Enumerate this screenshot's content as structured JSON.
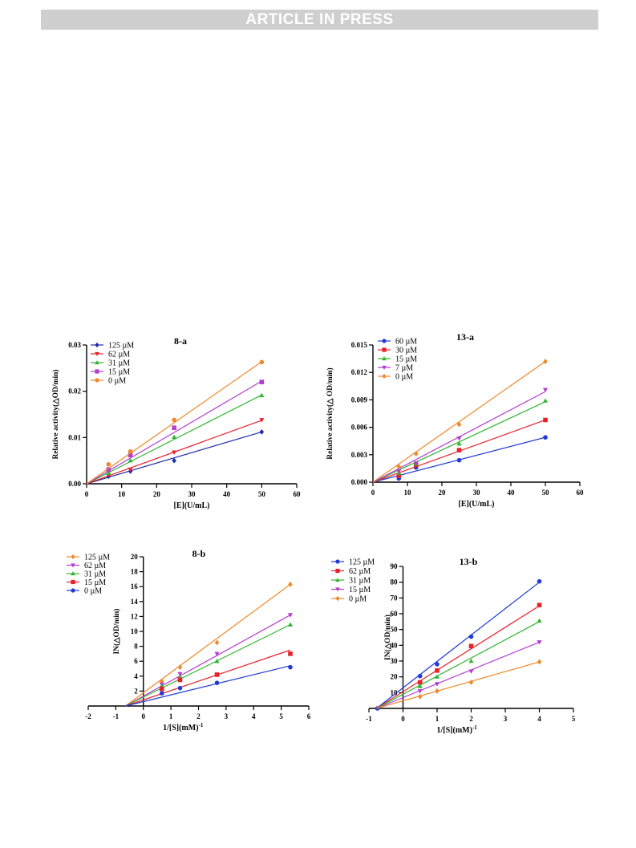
{
  "header": {
    "banner": "ARTICLE IN PRESS"
  },
  "chart_data": [
    {
      "id": "8-a",
      "type": "line",
      "title": "8-a",
      "xlabel": "[E](U/mL)",
      "ylabel": "Relative activity(△OD/min)",
      "xlim": [
        0,
        60
      ],
      "ylim": [
        0,
        0.03
      ],
      "xticks": [
        "0",
        "10",
        "20",
        "30",
        "40",
        "50",
        "60"
      ],
      "yticks": [
        "0.00",
        "0.01",
        "0.02",
        "0.03"
      ],
      "legend_position": "top-left",
      "series": [
        {
          "name": "125 µM",
          "color": "#1f2aa8",
          "marker": "diamond",
          "x": [
            6.25,
            12.5,
            25,
            50
          ],
          "y": [
            0.0016,
            0.0027,
            0.005,
            0.0112
          ],
          "fit": [
            [
              0,
              0
            ],
            [
              50,
              0.0112
            ]
          ]
        },
        {
          "name": "62 µM",
          "color": "#e8202a",
          "marker": "tri-down",
          "x": [
            6.25,
            12.5,
            25,
            50
          ],
          "y": [
            0.0019,
            0.0031,
            0.0068,
            0.0138
          ],
          "fit": [
            [
              0,
              0
            ],
            [
              50,
              0.0137
            ]
          ]
        },
        {
          "name": "31 µM",
          "color": "#2fb52f",
          "marker": "tri-up",
          "x": [
            6.25,
            12.5,
            25,
            50
          ],
          "y": [
            0.0023,
            0.005,
            0.0101,
            0.0191
          ],
          "fit": [
            [
              0,
              0
            ],
            [
              50,
              0.0192
            ]
          ]
        },
        {
          "name": "15 µM",
          "color": "#b43ccf",
          "marker": "square",
          "x": [
            6.25,
            12.5,
            25,
            50
          ],
          "y": [
            0.0031,
            0.0062,
            0.0121,
            0.022
          ],
          "fit": [
            [
              0,
              0
            ],
            [
              50,
              0.0222
            ]
          ]
        },
        {
          "name": "0 µM",
          "color": "#f0872a",
          "marker": "circle",
          "x": [
            6.25,
            12.5,
            25,
            50
          ],
          "y": [
            0.0042,
            0.007,
            0.0138,
            0.0263
          ],
          "fit": [
            [
              0,
              0
            ],
            [
              50,
              0.0264
            ]
          ]
        }
      ]
    },
    {
      "id": "13-a",
      "type": "line",
      "title": "13-a",
      "xlabel": "[E](U/mL)",
      "ylabel": "Relative activity(△ OD/min)",
      "xlim": [
        0,
        60
      ],
      "ylim": [
        0,
        0.015
      ],
      "xticks": [
        "0",
        "10",
        "20",
        "30",
        "40",
        "50",
        "60"
      ],
      "yticks": [
        "0.000",
        "0.003",
        "0.006",
        "0.009",
        "0.012",
        "0.015"
      ],
      "legend_position": "top-left",
      "series": [
        {
          "name": "60 µM",
          "color": "#1f3ad6",
          "marker": "circle",
          "x": [
            7.5,
            12.5,
            25,
            50
          ],
          "y": [
            0.0004,
            0.0016,
            0.0024,
            0.0049
          ],
          "fit": [
            [
              0,
              0
            ],
            [
              50,
              0.0049
            ]
          ]
        },
        {
          "name": "30 µM",
          "color": "#e8202a",
          "marker": "square",
          "x": [
            7.5,
            12.5,
            25,
            50
          ],
          "y": [
            0.0007,
            0.0019,
            0.0035,
            0.0068
          ],
          "fit": [
            [
              0,
              0
            ],
            [
              50,
              0.0068
            ]
          ]
        },
        {
          "name": "15 µM",
          "color": "#2fb52f",
          "marker": "tri-up",
          "x": [
            7.5,
            12.5,
            25,
            50
          ],
          "y": [
            0.001,
            0.002,
            0.0042,
            0.0089
          ],
          "fit": [
            [
              0,
              0
            ],
            [
              50,
              0.0088
            ]
          ]
        },
        {
          "name": "7 µM",
          "color": "#b43ccf",
          "marker": "tri-down",
          "x": [
            7.5,
            12.5,
            25,
            50
          ],
          "y": [
            0.0012,
            0.0021,
            0.0048,
            0.0101
          ],
          "fit": [
            [
              0,
              0
            ],
            [
              50,
              0.0099
            ]
          ]
        },
        {
          "name": "0 µM",
          "color": "#f0872a",
          "marker": "diamond",
          "x": [
            7.5,
            12.5,
            25,
            50
          ],
          "y": [
            0.0017,
            0.0031,
            0.0063,
            0.0132
          ],
          "fit": [
            [
              0,
              0
            ],
            [
              50,
              0.0132
            ]
          ]
        }
      ]
    },
    {
      "id": "8-b",
      "type": "line",
      "title": "8-b",
      "xlabel": "1/[S](mM)",
      "xlabel_sup": "-1",
      "ylabel": "IN(△OD/min)",
      "xlim": [
        -2,
        6
      ],
      "ylim": [
        0,
        20
      ],
      "x_axis_at": 0,
      "xticks": [
        "-2",
        "-1",
        "0",
        "1",
        "2",
        "3",
        "4",
        "5",
        "6"
      ],
      "yticks": [
        "2",
        "4",
        "6",
        "8",
        "10",
        "12",
        "14",
        "16",
        "18",
        "20"
      ],
      "legend_position": "top-left",
      "series": [
        {
          "name": "125 µM",
          "color": "#f0872a",
          "marker": "diamond",
          "x": [
            0.67,
            1.33,
            2.67,
            5.33
          ],
          "y": [
            3.3,
            5.2,
            8.5,
            16.3
          ],
          "fit": [
            [
              -0.65,
              0
            ],
            [
              5.33,
              16.3
            ]
          ]
        },
        {
          "name": "62 µM",
          "color": "#b43ccf",
          "marker": "tri-down",
          "x": [
            0.67,
            1.33,
            2.67,
            5.33
          ],
          "y": [
            2.9,
            4.3,
            7.0,
            12.2
          ],
          "fit": [
            [
              -0.65,
              0
            ],
            [
              5.33,
              12.2
            ]
          ]
        },
        {
          "name": "31 µM",
          "color": "#2fb52f",
          "marker": "tri-up",
          "x": [
            0.67,
            1.33,
            2.67,
            5.33
          ],
          "y": [
            2.7,
            3.9,
            6.0,
            10.9
          ],
          "fit": [
            [
              -0.65,
              0
            ],
            [
              5.33,
              10.9
            ]
          ]
        },
        {
          "name": "15 µM",
          "color": "#e8202a",
          "marker": "square",
          "x": [
            0.67,
            1.33,
            2.67,
            5.33
          ],
          "y": [
            2.3,
            3.5,
            4.2,
            7.0
          ],
          "fit": [
            [
              -0.65,
              0
            ],
            [
              5.33,
              7.5
            ]
          ]
        },
        {
          "name": "0 µM",
          "color": "#1f3ad6",
          "marker": "circle",
          "x": [
            0.67,
            1.33,
            2.67,
            5.33
          ],
          "y": [
            1.7,
            2.4,
            3.1,
            5.2
          ],
          "fit": [
            [
              -0.65,
              0
            ],
            [
              5.33,
              5.4
            ]
          ]
        }
      ]
    },
    {
      "id": "13-b",
      "type": "line",
      "title": "13-b",
      "xlabel": "1/[S](mM)",
      "xlabel_sup": "-1",
      "ylabel": "IN(△OD/min)",
      "xlim": [
        -1,
        5
      ],
      "ylim": [
        0,
        90
      ],
      "x_axis_at": 0,
      "xticks": [
        "-1",
        "0",
        "1",
        "2",
        "3",
        "4",
        "5"
      ],
      "yticks": [
        "10",
        "20",
        "30",
        "40",
        "50",
        "60",
        "70",
        "80",
        "90"
      ],
      "legend_position": "top-left",
      "series": [
        {
          "name": "125 µM",
          "color": "#1f3ad6",
          "marker": "circle",
          "x": [
            -0.75,
            0.5,
            1,
            2,
            4
          ],
          "y": [
            0,
            20.5,
            28,
            45.5,
            80.5
          ],
          "fit": [
            [
              -0.78,
              0
            ],
            [
              4,
              80
            ]
          ]
        },
        {
          "name": "62 µM",
          "color": "#e8202a",
          "marker": "square",
          "x": [
            0.5,
            1,
            2,
            4
          ],
          "y": [
            16.5,
            24,
            39.5,
            65.5
          ],
          "fit": [
            [
              -0.78,
              0
            ],
            [
              4,
              65
            ]
          ]
        },
        {
          "name": "31 µM",
          "color": "#2fb52f",
          "marker": "tri-up",
          "x": [
            0.5,
            1,
            2,
            4
          ],
          "y": [
            14,
            20,
            30,
            55.5
          ],
          "fit": [
            [
              -0.78,
              0
            ],
            [
              4,
              55
            ]
          ]
        },
        {
          "name": "15 µM",
          "color": "#b43ccf",
          "marker": "tri-down",
          "x": [
            0.5,
            1,
            2,
            4
          ],
          "y": [
            11,
            15.5,
            23.5,
            42
          ],
          "fit": [
            [
              -0.78,
              0
            ],
            [
              4,
              42
            ]
          ]
        },
        {
          "name": "0 µM",
          "color": "#f0872a",
          "marker": "diamond",
          "x": [
            0.5,
            1,
            2,
            4
          ],
          "y": [
            7.5,
            11,
            16.5,
            29.5
          ],
          "fit": [
            [
              -0.78,
              0
            ],
            [
              4,
              29.5
            ]
          ]
        }
      ]
    }
  ]
}
